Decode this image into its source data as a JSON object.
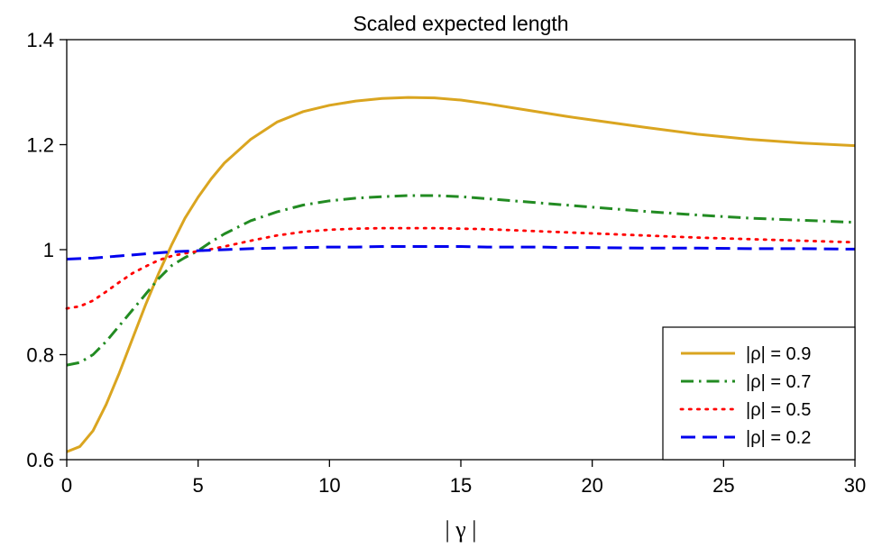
{
  "chart_data": {
    "type": "line",
    "title": "Scaled expected length",
    "xlabel": "| γ |",
    "ylabel": "",
    "xlim": [
      0,
      30
    ],
    "ylim": [
      0.6,
      1.4
    ],
    "x_ticks": [
      0,
      5,
      10,
      15,
      20,
      25,
      30
    ],
    "x_tick_labels": [
      "0",
      "5",
      "10",
      "15",
      "20",
      "25",
      "30"
    ],
    "y_ticks": [
      0.6,
      0.8,
      1.0,
      1.2,
      1.4
    ],
    "y_tick_labels": [
      "0.6",
      "0.8",
      "1",
      "1.2",
      "1.4"
    ],
    "grid": false,
    "legend_position": "bottom-right",
    "x": [
      0,
      0.5,
      1,
      1.5,
      2,
      2.5,
      3,
      3.5,
      4,
      4.5,
      5,
      5.5,
      6,
      7,
      8,
      9,
      10,
      11,
      12,
      13,
      14,
      15,
      16,
      17,
      18,
      19,
      20,
      22,
      24,
      26,
      28,
      30
    ],
    "series": [
      {
        "name": "|ρ| = 0.9",
        "color": "#DAA520",
        "dash": "solid",
        "values": [
          0.615,
          0.625,
          0.655,
          0.705,
          0.765,
          0.83,
          0.895,
          0.955,
          1.01,
          1.06,
          1.1,
          1.135,
          1.165,
          1.21,
          1.243,
          1.263,
          1.275,
          1.283,
          1.288,
          1.29,
          1.289,
          1.285,
          1.278,
          1.27,
          1.262,
          1.254,
          1.247,
          1.233,
          1.22,
          1.21,
          1.203,
          1.198
        ]
      },
      {
        "name": "|ρ| = 0.7",
        "color": "#228B22",
        "dash": "dashdot",
        "values": [
          0.78,
          0.785,
          0.8,
          0.825,
          0.855,
          0.885,
          0.915,
          0.945,
          0.97,
          0.985,
          0.998,
          1.015,
          1.03,
          1.055,
          1.072,
          1.085,
          1.093,
          1.098,
          1.101,
          1.103,
          1.103,
          1.101,
          1.097,
          1.093,
          1.089,
          1.085,
          1.081,
          1.073,
          1.066,
          1.06,
          1.056,
          1.052
        ]
      },
      {
        "name": "|ρ| = 0.5",
        "color": "#FF0000",
        "dash": "dotted",
        "values": [
          0.888,
          0.892,
          0.903,
          0.92,
          0.938,
          0.955,
          0.968,
          0.98,
          0.988,
          0.993,
          0.997,
          1.001,
          1.006,
          1.017,
          1.027,
          1.034,
          1.038,
          1.04,
          1.041,
          1.041,
          1.041,
          1.04,
          1.039,
          1.037,
          1.035,
          1.033,
          1.031,
          1.027,
          1.023,
          1.02,
          1.017,
          1.014
        ]
      },
      {
        "name": "|ρ| = 0.2",
        "color": "#0000EE",
        "dash": "dashed",
        "values": [
          0.982,
          0.983,
          0.984,
          0.986,
          0.988,
          0.99,
          0.992,
          0.994,
          0.996,
          0.997,
          0.998,
          0.999,
          1.0,
          1.002,
          1.003,
          1.004,
          1.005,
          1.005,
          1.006,
          1.006,
          1.006,
          1.006,
          1.005,
          1.005,
          1.005,
          1.004,
          1.004,
          1.003,
          1.003,
          1.002,
          1.002,
          1.001
        ]
      }
    ]
  }
}
